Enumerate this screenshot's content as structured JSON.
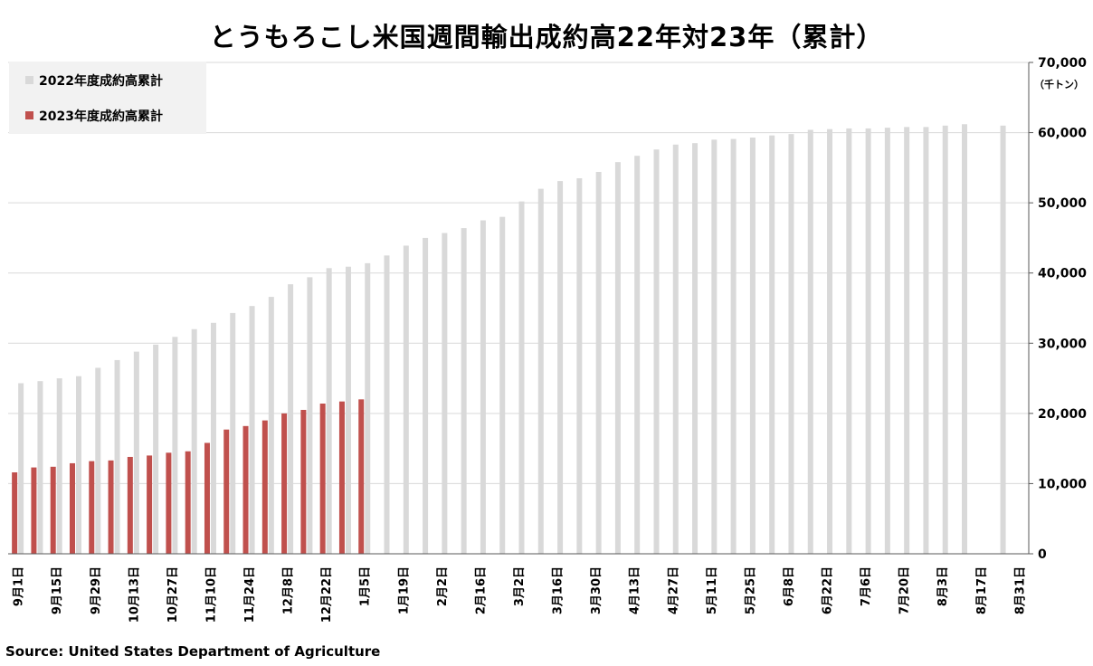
{
  "chart_data": {
    "type": "bar",
    "title": "とうもろこし米国週間輸出成約高22年対23年（累計）",
    "y_unit": "（千トン）",
    "ylim": [
      0,
      70000
    ],
    "yticks": [
      "0",
      "10,000",
      "20,000",
      "30,000",
      "40,000",
      "50,000",
      "60,000",
      "70,000"
    ],
    "grid": true,
    "legend_position": "top-left",
    "x_labels": [
      "9月1日",
      "9月15日",
      "9月29日",
      "10月13日",
      "10月27日",
      "11月10日",
      "11月24日",
      "12月8日",
      "12月22日",
      "1月5日",
      "1月19日",
      "2月2日",
      "2月16日",
      "3月2日",
      "3月16日",
      "3月30日",
      "4月13日",
      "4月27日",
      "5月11日",
      "5月25日",
      "6月8日",
      "6月22日",
      "7月6日",
      "7月20日",
      "8月3日",
      "8月17日",
      "8月31日"
    ],
    "series": [
      {
        "name": "2022年度成約高累計",
        "color": "#d9d9d9",
        "values": [
          24300,
          24600,
          25000,
          25300,
          26500,
          27600,
          28800,
          29800,
          30900,
          32000,
          32900,
          34300,
          35300,
          36600,
          38400,
          39400,
          40700,
          40900,
          41400,
          42500,
          43900,
          45000,
          45700,
          46400,
          47500,
          48000,
          50200,
          52000,
          53100,
          53500,
          54400,
          55800,
          56700,
          57600,
          58300,
          58500,
          59000,
          59100,
          59300,
          59600,
          59800,
          60400,
          60500,
          60600,
          60600,
          60700,
          60800,
          60800,
          61000,
          61200,
          null,
          61000,
          null
        ]
      },
      {
        "name": "2023年度成約高累計",
        "color": "#c0504d",
        "values": [
          11600,
          12300,
          12400,
          12900,
          13200,
          13300,
          13800,
          14000,
          14400,
          14600,
          15800,
          17700,
          18200,
          19000,
          20000,
          20500,
          21400,
          21700,
          22000
        ]
      }
    ]
  },
  "source": "Source: United States Department of Agriculture"
}
